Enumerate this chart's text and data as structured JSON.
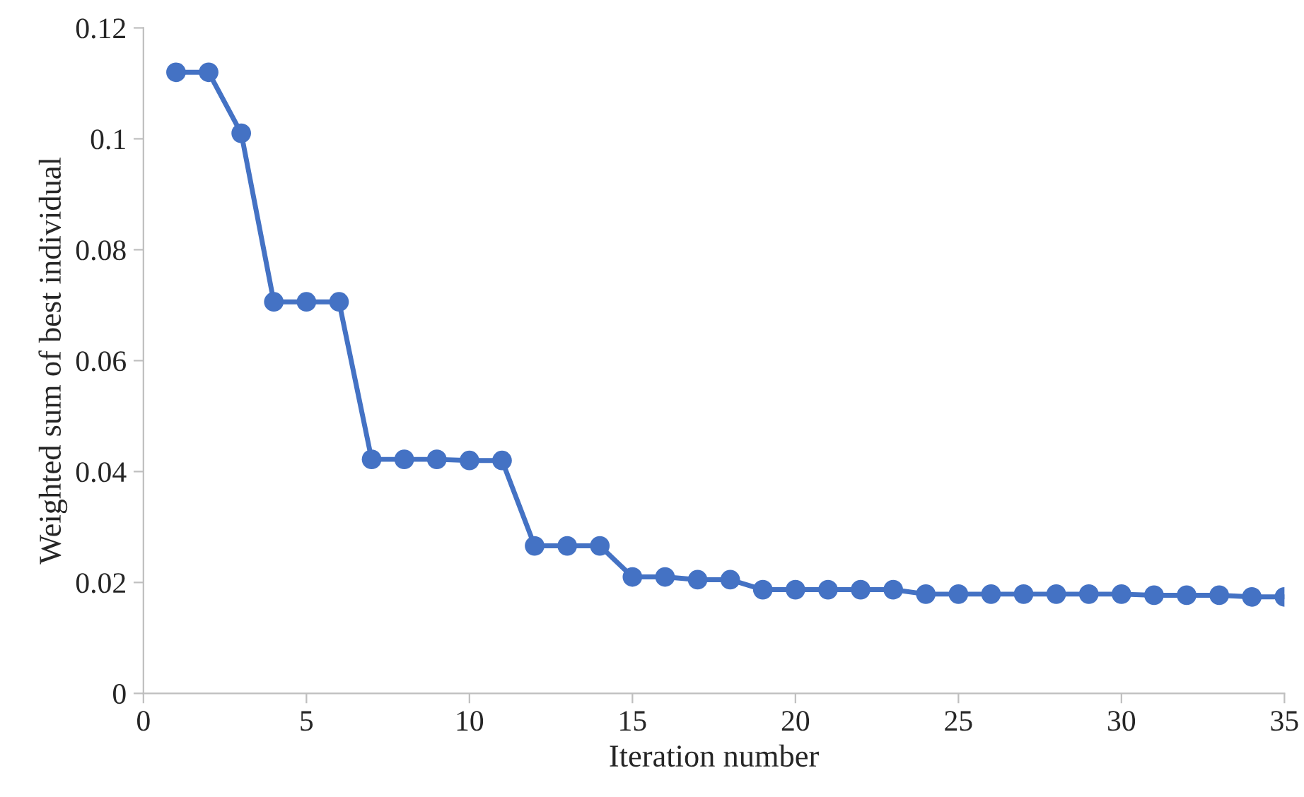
{
  "chart_data": {
    "type": "line",
    "xlabel": "Iteration number",
    "ylabel": "Weighted sum of best individual",
    "x": [
      1,
      2,
      3,
      4,
      5,
      6,
      7,
      8,
      9,
      10,
      11,
      12,
      13,
      14,
      15,
      16,
      17,
      18,
      19,
      20,
      21,
      22,
      23,
      24,
      25,
      26,
      27,
      28,
      29,
      30,
      31,
      32,
      33,
      34,
      35
    ],
    "series": [
      {
        "color": "#4472c4",
        "values": [
          0.112,
          0.112,
          0.101,
          0.0706,
          0.0706,
          0.0706,
          0.0422,
          0.0422,
          0.0422,
          0.042,
          0.042,
          0.0266,
          0.0266,
          0.0266,
          0.021,
          0.021,
          0.0205,
          0.0205,
          0.0187,
          0.0187,
          0.0187,
          0.0187,
          0.0187,
          0.0179,
          0.0179,
          0.0179,
          0.0179,
          0.0179,
          0.0179,
          0.0179,
          0.0177,
          0.0177,
          0.0177,
          0.0174,
          0.0174
        ]
      }
    ],
    "xlim": [
      0,
      35
    ],
    "xticks": [
      0,
      5,
      10,
      15,
      20,
      25,
      30,
      35
    ],
    "ylim": [
      0,
      0.12
    ],
    "yticks": [
      {
        "value": 0,
        "label": "0"
      },
      {
        "value": 0.02,
        "label": "0.02"
      },
      {
        "value": 0.04,
        "label": "0.04"
      },
      {
        "value": 0.06,
        "label": "0.06"
      },
      {
        "value": 0.08,
        "label": "0.08"
      },
      {
        "value": 0.1,
        "label": "0.1"
      },
      {
        "value": 0.12,
        "label": "0.12"
      }
    ],
    "marker": "circle",
    "line_style": "solid",
    "grid": false
  }
}
